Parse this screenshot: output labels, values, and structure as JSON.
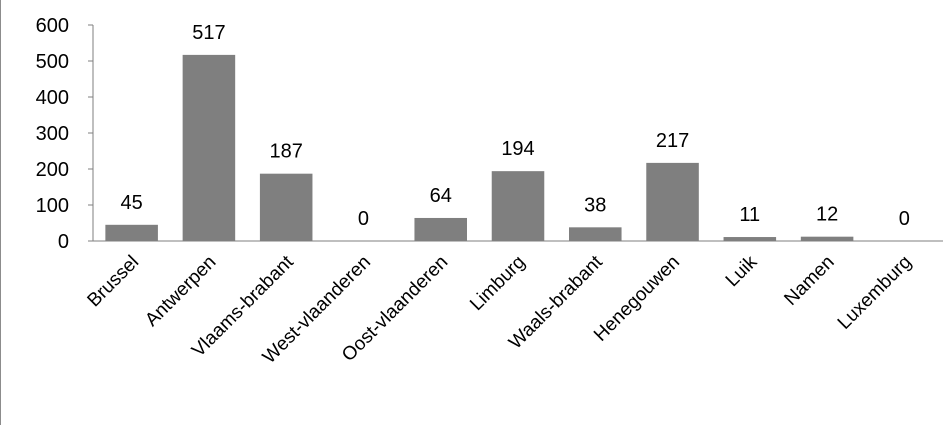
{
  "chart_data": {
    "type": "bar",
    "title": "",
    "xlabel": "",
    "ylabel": "",
    "categories": [
      "Brussel",
      "Antwerpen",
      "Vlaams-brabant",
      "West-vlaanderen",
      "Oost-vlaanderen",
      "Limburg",
      "Waals-brabant",
      "Henegouwen",
      "Luik",
      "Namen",
      "Luxemburg"
    ],
    "values": [
      45,
      517,
      187,
      0,
      64,
      194,
      38,
      217,
      11,
      12,
      0
    ],
    "ylim": [
      0,
      600
    ],
    "yticks": [
      0,
      100,
      200,
      300,
      400,
      500,
      600
    ],
    "data_labels": true,
    "grid": false,
    "legend": "none",
    "bar_color": "#7f7f7f",
    "axis_color": "#7f7f7f"
  }
}
